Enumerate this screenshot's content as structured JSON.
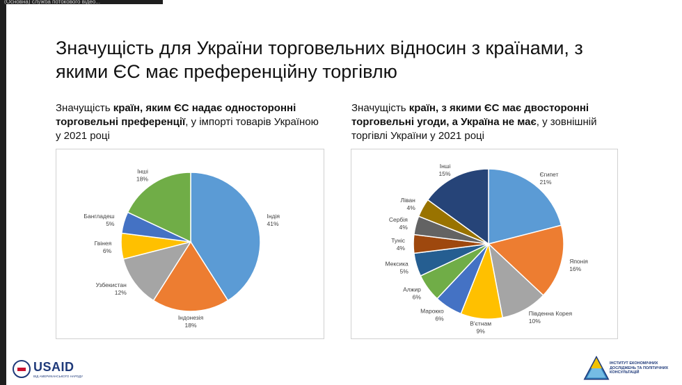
{
  "window": {
    "topbar_text": "(Основна) служба потокового відео..."
  },
  "slide": {
    "title": "Значущість для України торговельних відносин з країнами, з якими ЄС має преференційну торгівлю"
  },
  "left_subtitle": {
    "part1": "Значущість ",
    "bold": "країн, яким ЄС надає односторонні торговельні преференції",
    "part2": ", у імпорті товарів Україною у 2021 році"
  },
  "right_subtitle": {
    "part1": "Значущість ",
    "bold": "країн, з якими ЄС має двосторонні торговельні угоди, а Україна не має",
    "part2": ", у зовнішній торгівлі України у 2021 році"
  },
  "logos": {
    "usaid_word": "USAID",
    "usaid_sub": "ВІД АМЕРИКАНСЬКОГО НАРОДУ",
    "ier_text": "ІНСТИТУТ ЕКОНОМІЧНИХ ДОСЛІДЖЕНЬ ТА ПОЛІТИЧНИХ КОНСУЛЬТАЦІЙ"
  },
  "chart_data": [
    {
      "type": "pie",
      "slices": [
        {
          "label": "Індія",
          "value": 41,
          "pct_label": "41%",
          "color": "#5b9bd5"
        },
        {
          "label": "Індонезія",
          "value": 18,
          "pct_label": "18%",
          "color": "#ed7d31"
        },
        {
          "label": "Узбекистан",
          "value": 12,
          "pct_label": "12%",
          "color": "#a5a5a5"
        },
        {
          "label": "Гвінея",
          "value": 6,
          "pct_label": "6%",
          "color": "#ffc000"
        },
        {
          "label": "Бангладеш",
          "value": 5,
          "pct_label": "5%",
          "color": "#4472c4"
        },
        {
          "label": "Інші",
          "value": 18,
          "pct_label": "18%",
          "color": "#70ad47"
        }
      ]
    },
    {
      "type": "pie",
      "slices": [
        {
          "label": "Єгипет",
          "value": 21,
          "pct_label": "21%",
          "color": "#5b9bd5"
        },
        {
          "label": "Японія",
          "value": 16,
          "pct_label": "16%",
          "color": "#ed7d31"
        },
        {
          "label": "Південна Корея",
          "value": 10,
          "pct_label": "10%",
          "color": "#a5a5a5"
        },
        {
          "label": "В'єтнам",
          "value": 9,
          "pct_label": "9%",
          "color": "#ffc000"
        },
        {
          "label": "Марокко",
          "value": 6,
          "pct_label": "6%",
          "color": "#4472c4"
        },
        {
          "label": "Алжир",
          "value": 6,
          "pct_label": "6%",
          "color": "#70ad47"
        },
        {
          "label": "Мексика",
          "value": 5,
          "pct_label": "5%",
          "color": "#255e91"
        },
        {
          "label": "Туніс",
          "value": 4,
          "pct_label": "4%",
          "color": "#9e480e"
        },
        {
          "label": "Сербія",
          "value": 4,
          "pct_label": "4%",
          "color": "#636363"
        },
        {
          "label": "Ліван",
          "value": 4,
          "pct_label": "4%",
          "color": "#997300"
        },
        {
          "label": "Інші",
          "value": 15,
          "pct_label": "15%",
          "color": "#264478"
        }
      ]
    }
  ]
}
